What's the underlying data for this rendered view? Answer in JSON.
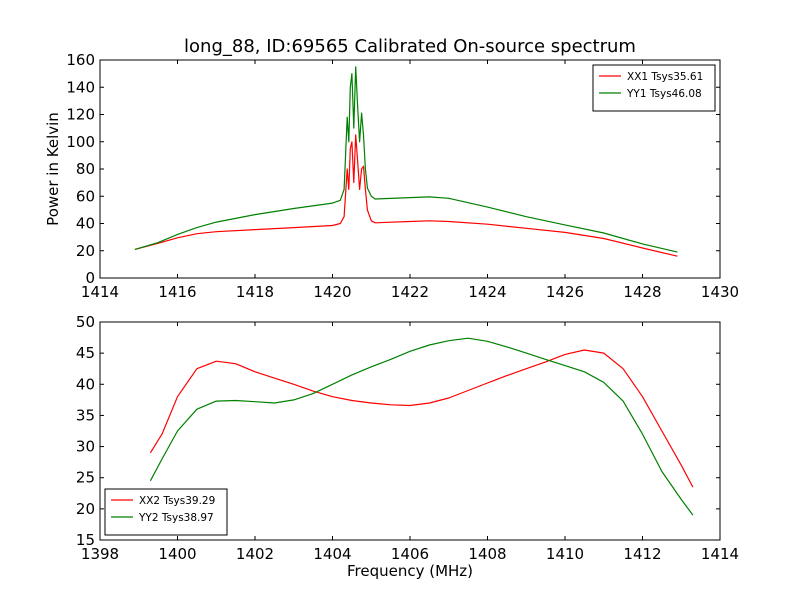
{
  "chart_data": [
    {
      "type": "line",
      "title": "long_88, ID:69565 Calibrated On-source spectrum",
      "xlabel": "",
      "ylabel": "Power in Kelvin",
      "xlim": [
        1414,
        1430
      ],
      "ylim": [
        0,
        160
      ],
      "xticks": [
        "1414",
        "1416",
        "1418",
        "1420",
        "1422",
        "1424",
        "1426",
        "1428",
        "1430"
      ],
      "yticks": [
        "0",
        "20",
        "40",
        "60",
        "80",
        "100",
        "120",
        "140",
        "160"
      ],
      "grid": false,
      "legend_position": "top-right",
      "series": [
        {
          "name": "XX1 Tsys35.61",
          "color": "#ff0000",
          "x": [
            1414.9,
            1415.5,
            1416.0,
            1416.5,
            1417.0,
            1418.0,
            1419.0,
            1420.0,
            1420.2,
            1420.3,
            1420.38,
            1420.42,
            1420.46,
            1420.5,
            1420.55,
            1420.6,
            1420.65,
            1420.7,
            1420.75,
            1420.8,
            1420.85,
            1420.9,
            1421.0,
            1421.1,
            1422.0,
            1422.5,
            1423.0,
            1424.0,
            1425.0,
            1426.0,
            1427.0,
            1428.0,
            1428.9
          ],
          "y": [
            21,
            25.5,
            29.5,
            32.5,
            34,
            35.5,
            37,
            38.5,
            40,
            45,
            80,
            65,
            95,
            100,
            70,
            105,
            85,
            65,
            80,
            82,
            65,
            50,
            42,
            40.5,
            41.5,
            42,
            41.5,
            39.5,
            36.5,
            33.5,
            29,
            22,
            16
          ]
        },
        {
          "name": "YY1 Tsys46.08",
          "color": "#008000",
          "x": [
            1414.9,
            1415.5,
            1416.0,
            1416.5,
            1417.0,
            1418.0,
            1419.0,
            1420.0,
            1420.2,
            1420.3,
            1420.38,
            1420.42,
            1420.46,
            1420.5,
            1420.55,
            1420.6,
            1420.65,
            1420.7,
            1420.75,
            1420.8,
            1420.85,
            1420.9,
            1421.0,
            1421.1,
            1422.0,
            1422.5,
            1423.0,
            1424.0,
            1425.0,
            1426.0,
            1427.0,
            1428.0,
            1428.9
          ],
          "y": [
            21,
            26,
            32,
            37,
            41,
            46.5,
            51,
            55,
            57,
            65,
            118,
            100,
            140,
            150,
            110,
            155,
            125,
            100,
            121,
            105,
            80,
            66,
            60,
            58,
            59,
            59.5,
            58.5,
            52,
            45,
            39,
            33,
            25,
            19
          ]
        }
      ]
    },
    {
      "type": "line",
      "title": "",
      "xlabel": "Frequency (MHz)",
      "ylabel": "",
      "xlim": [
        1398,
        1414
      ],
      "ylim": [
        15,
        50
      ],
      "xticks": [
        "1398",
        "1400",
        "1402",
        "1404",
        "1406",
        "1408",
        "1410",
        "1412",
        "1414"
      ],
      "yticks": [
        "15",
        "20",
        "25",
        "30",
        "35",
        "40",
        "45",
        "50"
      ],
      "grid": false,
      "legend_position": "bottom-left",
      "series": [
        {
          "name": "XX2 Tsys39.29",
          "color": "#ff0000",
          "x": [
            1399.3,
            1399.6,
            1400.0,
            1400.5,
            1401.0,
            1401.5,
            1402.0,
            1402.5,
            1403.0,
            1403.5,
            1404.0,
            1404.5,
            1405.0,
            1405.5,
            1406.0,
            1406.5,
            1407.0,
            1407.5,
            1408.0,
            1408.5,
            1409.0,
            1409.5,
            1410.0,
            1410.5,
            1411.0,
            1411.5,
            1412.0,
            1412.5,
            1413.0,
            1413.3
          ],
          "y": [
            29,
            32,
            38,
            42.5,
            43.7,
            43.3,
            42,
            41,
            40,
            38.9,
            38,
            37.4,
            37,
            36.7,
            36.6,
            37,
            37.8,
            39,
            40.2,
            41.4,
            42.5,
            43.6,
            44.8,
            45.5,
            45,
            42.5,
            38,
            32.5,
            27,
            23.5
          ]
        },
        {
          "name": "YY2 Tsys38.97",
          "color": "#008000",
          "x": [
            1399.3,
            1399.6,
            1400.0,
            1400.5,
            1401.0,
            1401.5,
            1402.0,
            1402.5,
            1403.0,
            1403.5,
            1404.0,
            1404.5,
            1405.0,
            1405.5,
            1406.0,
            1406.5,
            1407.0,
            1407.5,
            1408.0,
            1408.5,
            1409.0,
            1409.5,
            1410.0,
            1410.5,
            1411.0,
            1411.5,
            1412.0,
            1412.5,
            1413.0,
            1413.3
          ],
          "y": [
            24.5,
            28,
            32.5,
            36,
            37.3,
            37.4,
            37.2,
            37,
            37.5,
            38.5,
            40,
            41.5,
            42.8,
            44,
            45.3,
            46.3,
            47,
            47.4,
            46.9,
            46,
            45,
            44,
            43,
            42,
            40.3,
            37.3,
            32,
            26,
            21.5,
            19
          ]
        }
      ]
    }
  ]
}
